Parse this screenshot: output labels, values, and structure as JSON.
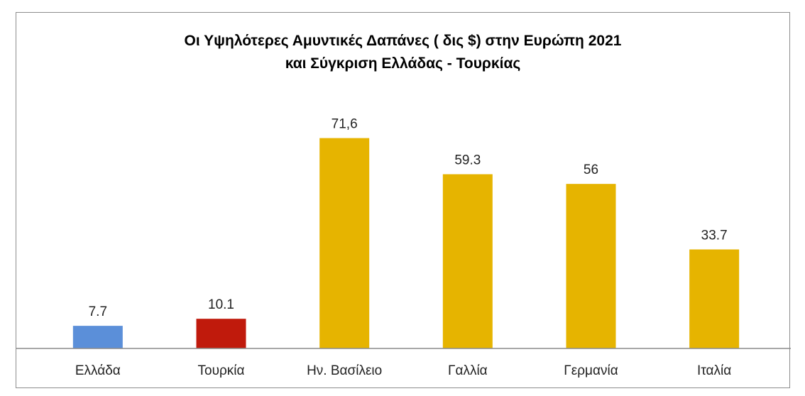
{
  "chart_data": {
    "type": "bar",
    "title": "Οι Υψηλότερες Αμυντικές  Δαπάνες ( δις $) στην Ευρώπη 2021",
    "subtitle": "και Σύγκριση Ελλάδας  - Τουρκίας",
    "xlabel": "",
    "ylabel": "",
    "categories": [
      "Ελλάδα",
      "Τουρκία",
      "Ην. Βασίλειο",
      "Γαλλία",
      "Γερμανία",
      "Ιταλία"
    ],
    "values": [
      7.7,
      10.1,
      71.6,
      59.3,
      56,
      33.7
    ],
    "value_labels": [
      "7.7",
      "10.1",
      "71,6",
      "59.3",
      "56",
      "33.7"
    ],
    "colors": [
      "#5b8fd9",
      "#c01a0c",
      "#e6b400",
      "#e6b400",
      "#e6b400",
      "#e6b400"
    ],
    "ylim": [
      0,
      80
    ],
    "grid": false,
    "legend": "none"
  }
}
